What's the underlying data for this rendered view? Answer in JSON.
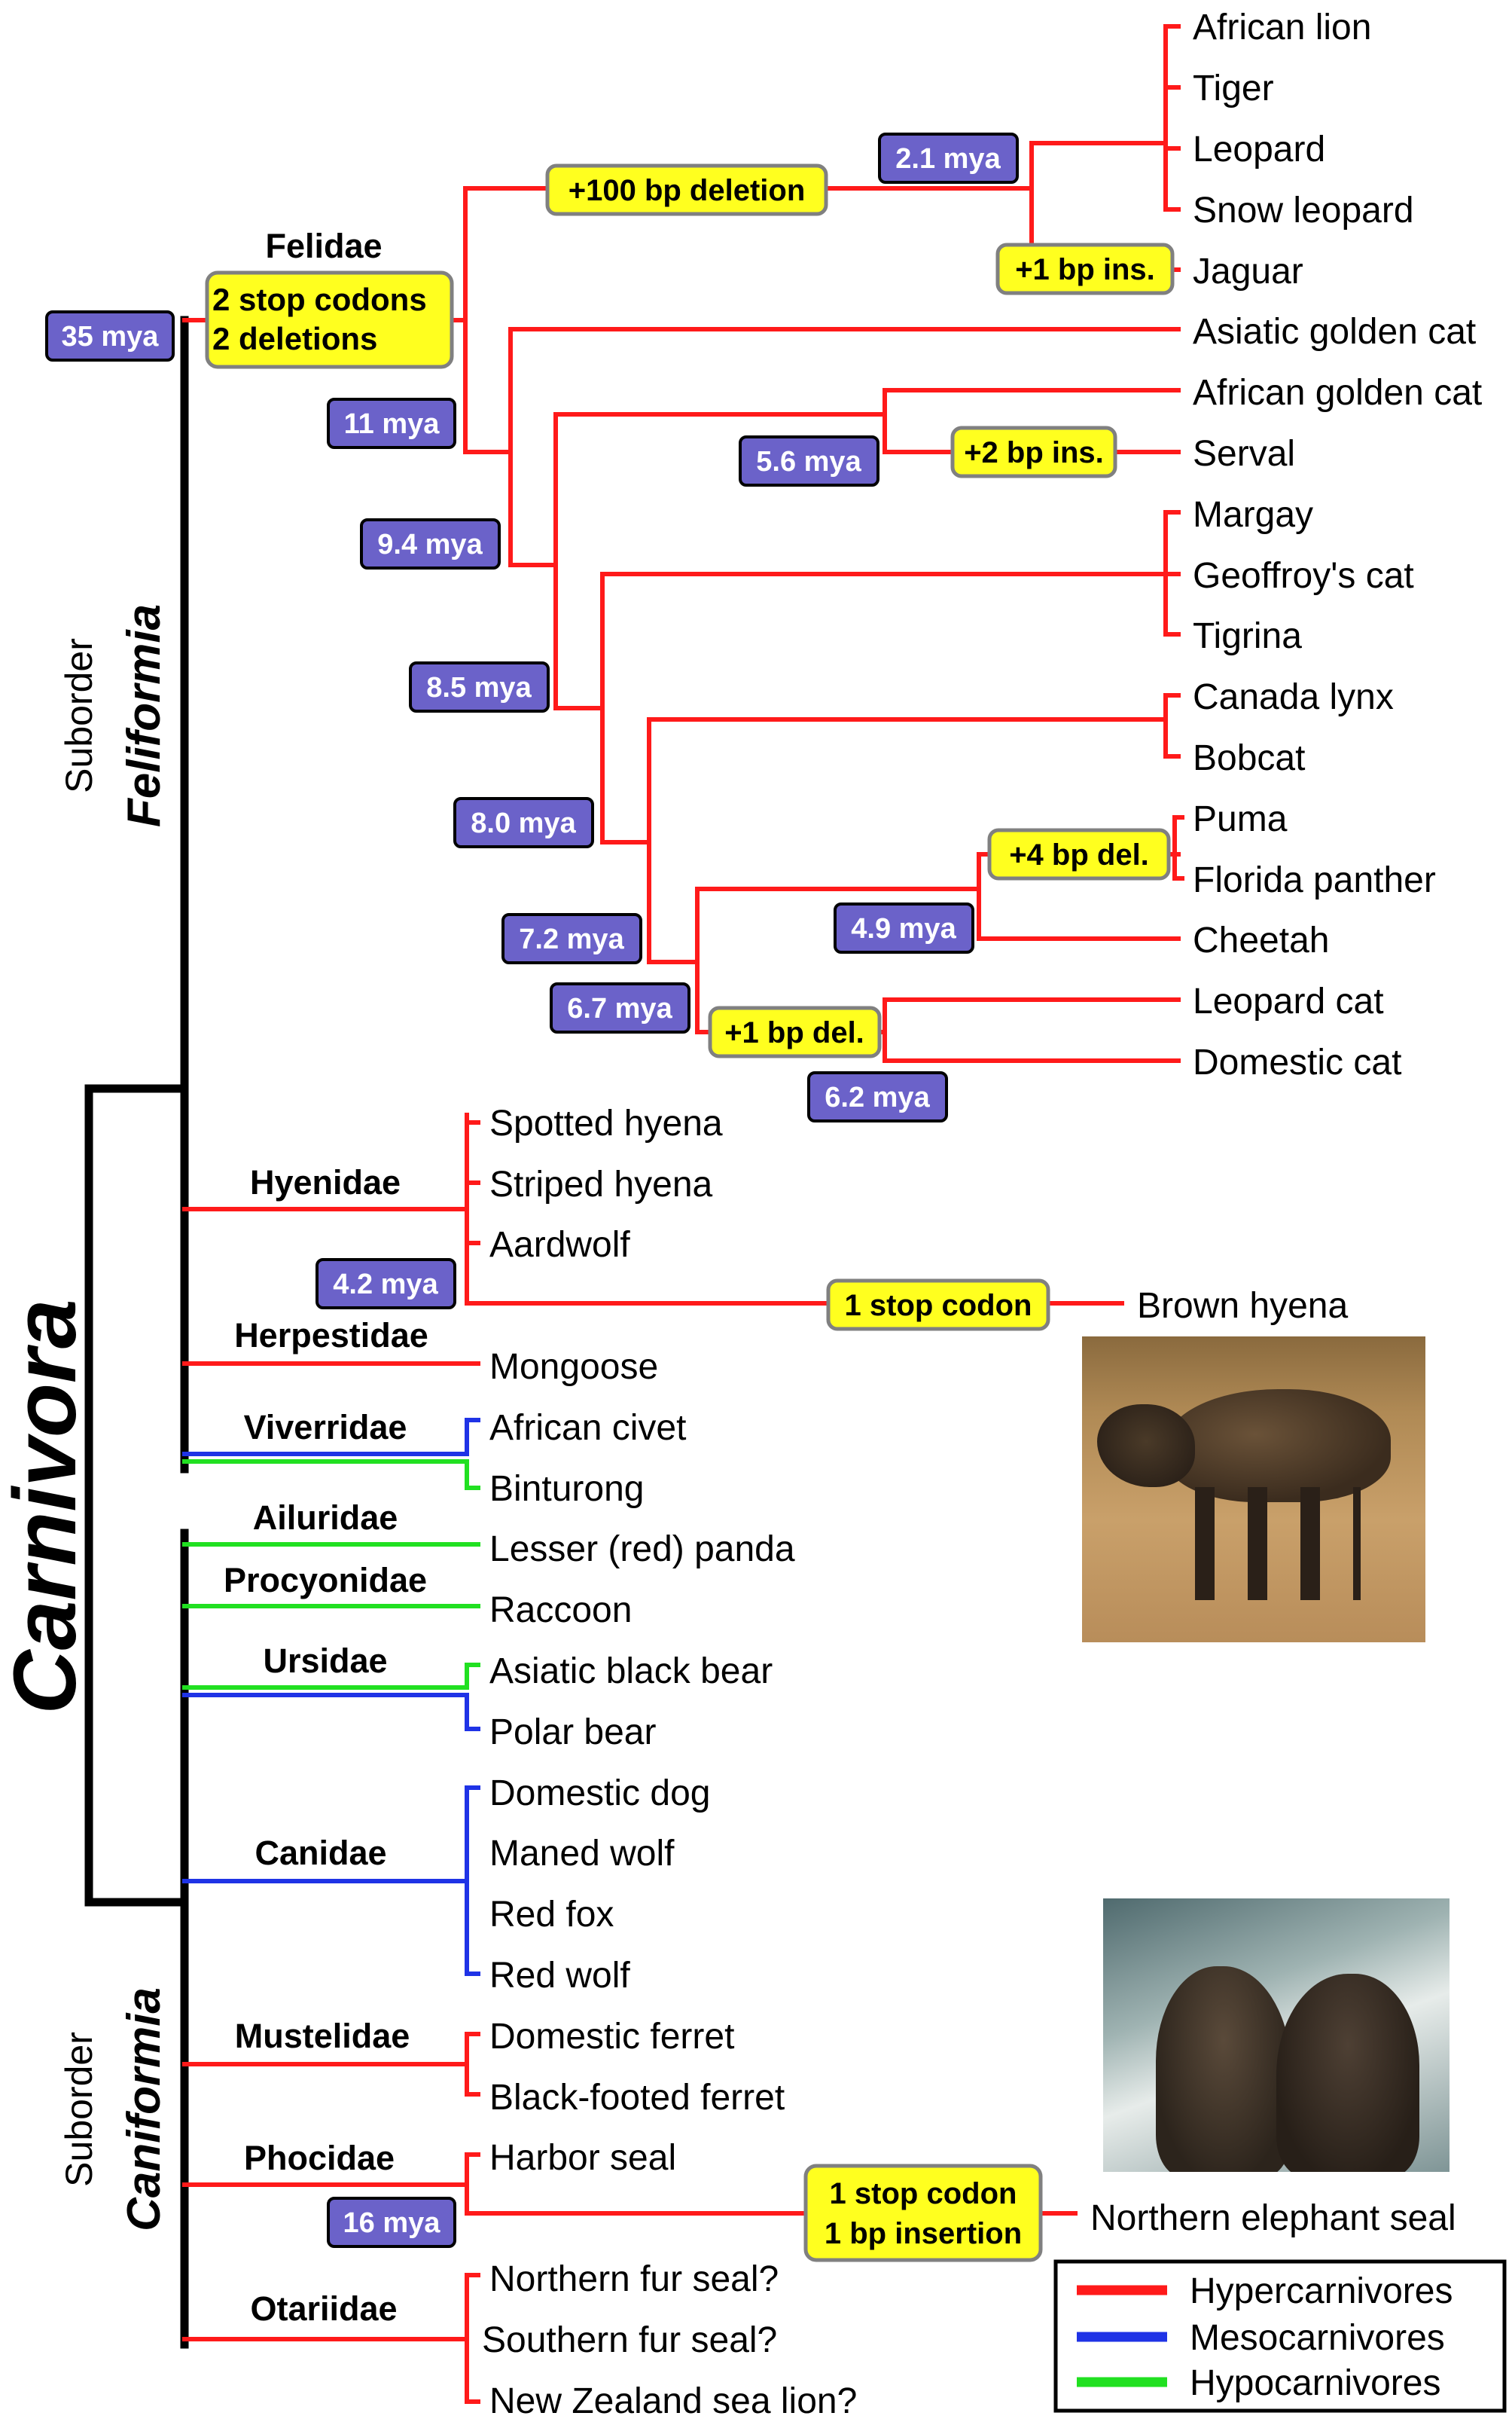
{
  "colors": {
    "hyper": "#ff1a1a",
    "meso": "#1f33e6",
    "hypo": "#21e021",
    "black": "#000000",
    "date_fill": "#6b62c9",
    "event_fill": "#ffff1f",
    "box_border": "#808080"
  },
  "order_label": "Carnivora",
  "suborders": [
    {
      "prefix": "Suborder",
      "name": "Feliformia"
    },
    {
      "prefix": "Suborder",
      "name": "Caniformia"
    }
  ],
  "families": [
    "Felidae",
    "Hyenidae",
    "Herpestidae",
    "Viverridae",
    "Ailuridae",
    "Procyonidae",
    "Ursidae",
    "Canidae",
    "Mustelidae",
    "Phocidae",
    "Otariidae"
  ],
  "species": [
    "African lion",
    "Tiger",
    "Leopard",
    "Snow leopard",
    "Jaguar",
    "Asiatic golden cat",
    "African golden cat",
    "Serval",
    "Margay",
    "Geoffroy's cat",
    "Tigrina",
    "Canada lynx",
    "Bobcat",
    "Puma",
    "Florida panther",
    "Cheetah",
    "Leopard cat",
    "Domestic cat",
    "Spotted hyena",
    "Striped hyena",
    "Aardwolf",
    "Brown hyena",
    "Mongoose",
    "African civet",
    "Binturong",
    "Lesser (red) panda",
    "Raccoon",
    "Asiatic black bear",
    "Polar bear",
    "Domestic dog",
    "Maned wolf",
    "Red fox",
    "Red wolf",
    "Domestic ferret",
    "Black-footed ferret",
    "Harbor seal",
    "Northern elephant seal",
    "Northern fur seal?",
    "Southern fur seal?",
    "New Zealand sea lion?"
  ],
  "divergence_dates": [
    "35 mya",
    "11 mya",
    "9.4 mya",
    "8.5 mya",
    "8.0 mya",
    "7.2 mya",
    "6.7 mya",
    "5.6 mya",
    "4.9 mya",
    "2.1 mya",
    "6.2 mya",
    "4.2 mya",
    "16 mya"
  ],
  "mutation_events": [
    [
      "2 stop codons",
      "2 deletions"
    ],
    [
      "+100 bp deletion"
    ],
    [
      "+1 bp ins."
    ],
    [
      "+2 bp ins."
    ],
    [
      "+4 bp del."
    ],
    [
      "+1 bp del."
    ],
    [
      "1 stop codon"
    ],
    [
      "1 stop codon",
      "1 bp insertion"
    ]
  ],
  "legend": {
    "items": [
      {
        "label": "Hypercarnivores",
        "color": "#ff1a1a"
      },
      {
        "label": "Mesocarnivores",
        "color": "#1f33e6"
      },
      {
        "label": "Hypocarnivores",
        "color": "#21e021"
      }
    ]
  },
  "photos": [
    "brown-hyena-photo",
    "elephant-seal-photo"
  ]
}
